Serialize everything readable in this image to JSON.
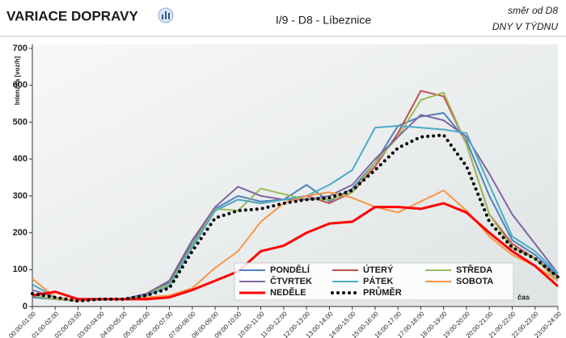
{
  "chart_data": {
    "type": "line",
    "title": "VARIACE DOPRAVY",
    "subtitle": "I/9 - D8 - Líbeznice",
    "direction": "směr od D8",
    "mode": "DNY V TÝDNU",
    "y_label": "Intenzita [voz/h]",
    "x_label": "čas",
    "categories": [
      "00:00-01:00",
      "01:00-02:00",
      "02:00-03:00",
      "03:00-04:00",
      "04:00-05:00",
      "05:00-06:00",
      "06:00-07:00",
      "07:00-08:00",
      "08:00-09:00",
      "09:00-10:00",
      "10:00-11:00",
      "11:00-12:00",
      "12:00-13:00",
      "13:00-14:00",
      "14:00-15:00",
      "15:00-16:00",
      "16:00-17:00",
      "17:00-18:00",
      "18:00-19:00",
      "19:00-20:00",
      "20:00-21:00",
      "21:00-22:00",
      "22:00-23:00",
      "23:00-24:00"
    ],
    "ylim": [
      0,
      700
    ],
    "yticks": [
      0,
      100,
      200,
      300,
      400,
      500,
      600,
      700
    ],
    "series": [
      {
        "name": "PONDĚLÍ",
        "color": "#4f81bd",
        "linewidth": 2,
        "values": [
          25,
          20,
          15,
          20,
          20,
          30,
          65,
          170,
          265,
          300,
          285,
          290,
          330,
          285,
          320,
          390,
          490,
          515,
          525,
          450,
          300,
          180,
          140,
          85
        ]
      },
      {
        "name": "ÚTERÝ",
        "color": "#c0504d",
        "linewidth": 2,
        "values": [
          30,
          20,
          15,
          20,
          20,
          35,
          70,
          180,
          260,
          290,
          280,
          290,
          300,
          280,
          310,
          380,
          470,
          585,
          570,
          440,
          250,
          170,
          130,
          80
        ]
      },
      {
        "name": "STŘEDA",
        "color": "#9bbb59",
        "linewidth": 2,
        "values": [
          30,
          20,
          15,
          20,
          20,
          35,
          60,
          165,
          265,
          260,
          320,
          305,
          290,
          290,
          310,
          390,
          460,
          560,
          580,
          440,
          250,
          160,
          130,
          70
        ]
      },
      {
        "name": "ČTVRTEK",
        "color": "#8064a2",
        "linewidth": 2,
        "values": [
          45,
          25,
          15,
          20,
          20,
          35,
          70,
          180,
          270,
          325,
          300,
          290,
          290,
          300,
          330,
          400,
          460,
          520,
          505,
          460,
          360,
          250,
          170,
          90
        ]
      },
      {
        "name": "PÁTEK",
        "color": "#4bacc6",
        "linewidth": 2,
        "values": [
          60,
          25,
          15,
          20,
          20,
          30,
          55,
          160,
          260,
          290,
          280,
          290,
          300,
          330,
          370,
          485,
          490,
          485,
          480,
          470,
          330,
          190,
          150,
          90
        ]
      },
      {
        "name": "SOBOTA",
        "color": "#f79646",
        "linewidth": 2,
        "values": [
          75,
          25,
          15,
          20,
          20,
          25,
          30,
          50,
          105,
          150,
          230,
          280,
          300,
          310,
          295,
          270,
          255,
          285,
          315,
          260,
          190,
          140,
          110,
          70
        ]
      },
      {
        "name": "NEDĚLE",
        "color": "#ff0000",
        "linewidth": 3,
        "values": [
          30,
          40,
          20,
          20,
          20,
          20,
          25,
          45,
          70,
          95,
          150,
          165,
          200,
          225,
          230,
          270,
          270,
          265,
          280,
          255,
          200,
          150,
          110,
          55
        ]
      },
      {
        "name": "PRŮMĚR",
        "color": "#000000",
        "linewidth": 4,
        "line_style": "dotted",
        "values": [
          35,
          25,
          15,
          20,
          20,
          30,
          50,
          150,
          240,
          260,
          265,
          280,
          290,
          295,
          315,
          370,
          430,
          460,
          465,
          380,
          230,
          160,
          130,
          80
        ]
      }
    ]
  }
}
